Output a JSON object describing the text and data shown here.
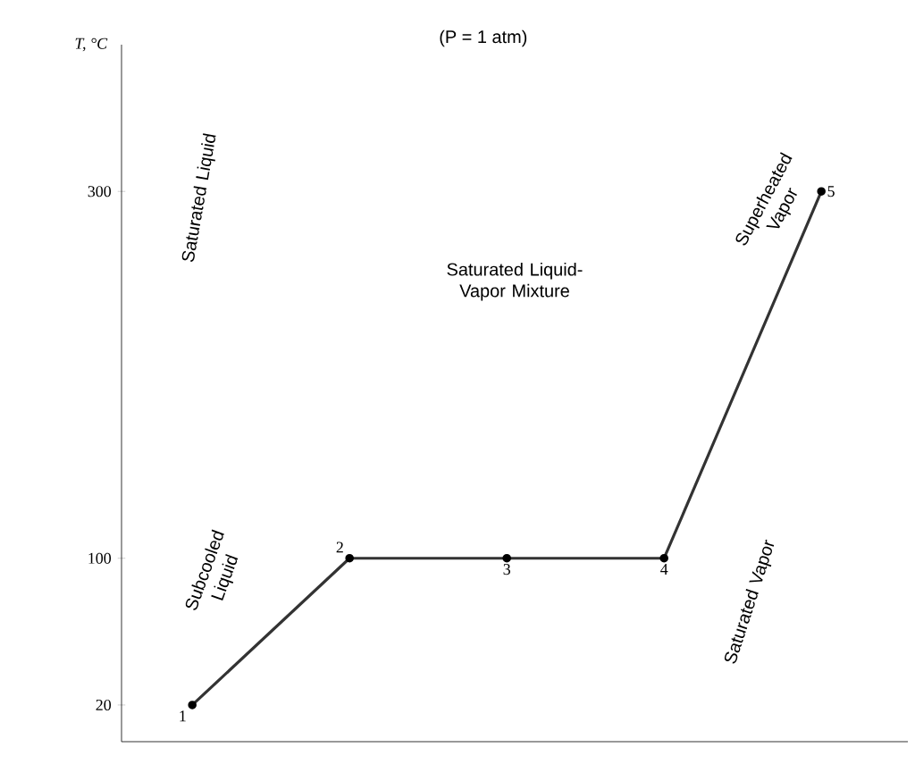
{
  "chart_data": {
    "type": "line",
    "title": "(P = 1 atm)",
    "ylabel": "T, °C",
    "categories": [
      null,
      null,
      null,
      null,
      null
    ],
    "values": [
      20,
      100,
      100,
      100,
      300
    ],
    "color": "#333333",
    "marker": "circle",
    "ylim": [
      0,
      380
    ],
    "yticks": [
      20,
      100,
      300
    ],
    "tick_labels": "y",
    "annotations": [
      {
        "text": "1",
        "y": 20
      },
      {
        "text": "2",
        "y": 100
      },
      {
        "text": "3",
        "y": 100
      },
      {
        "text": "4",
        "y": 100
      },
      {
        "text": "5",
        "y": 300
      },
      "Saturated Liquid",
      "Saturated Liquid-Vapor Mixture",
      "Superheated Vapor",
      "Subcooled Liquid",
      "Saturated Vapor"
    ]
  }
}
